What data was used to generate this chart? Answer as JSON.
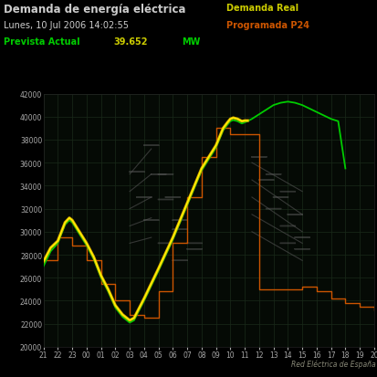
{
  "title": "Demanda de energía eléctrica",
  "subtitle": "Lunes, 10 Jul 2006 14:02:55",
  "label_prevista": "Prevista Actual",
  "label_value": "39.652",
  "label_mw": "MW",
  "label_demanda_real": "Demanda Real",
  "label_programada": "Programada P24",
  "watermark": "Red Eléctrica de España",
  "bg_color": "#000000",
  "grid_color": "#1e2a1e",
  "title_color": "#cccccc",
  "subtitle_color": "#cccccc",
  "prevista_color": "#00cc00",
  "value_color": "#cccc00",
  "mw_color": "#00cc00",
  "real_color": "#cccc00",
  "programada_color": "#cc5500",
  "ylim": [
    20000,
    42000
  ],
  "yticks": [
    20000,
    22000,
    24000,
    26000,
    28000,
    30000,
    32000,
    34000,
    36000,
    38000,
    40000,
    42000
  ],
  "hours": [
    "21",
    "22",
    "23",
    "00",
    "01",
    "02",
    "03",
    "04",
    "05",
    "06",
    "07",
    "08",
    "09",
    "10",
    "11",
    "12",
    "13",
    "14",
    "15",
    "16",
    "17",
    "18",
    "19",
    "20"
  ],
  "demanda_real_y": [
    27400,
    28600,
    29200,
    30800,
    31200,
    31000,
    30000,
    29000,
    27800,
    26200,
    25000,
    23600,
    22800,
    22500,
    22300,
    22500,
    24200,
    26800,
    29500,
    32500,
    35500,
    37500,
    39000,
    39500,
    39800,
    39900,
    39800,
    39600,
    39652,
    39652
  ],
  "demanda_real_t": [
    0,
    0.5,
    1,
    1.5,
    1.8,
    2,
    2.5,
    3,
    3.5,
    4,
    4.5,
    5,
    5.5,
    5.8,
    6,
    6.3,
    7,
    8,
    9,
    10,
    11,
    12,
    12.5,
    12.8,
    13,
    13.2,
    13.5,
    13.8,
    14,
    14.2
  ],
  "prevista_y": [
    27000,
    28300,
    29000,
    30600,
    31000,
    30800,
    29800,
    28800,
    27600,
    26000,
    24800,
    23400,
    22600,
    22300,
    22100,
    22300,
    24000,
    26600,
    29300,
    32300,
    35300,
    37300,
    38800,
    39300,
    39600,
    39700,
    39600,
    39400,
    39500,
    39600,
    39800,
    40200,
    40600,
    41000,
    41200,
    41300,
    41200,
    41000,
    40700,
    40400,
    40100,
    39800,
    39600,
    35500
  ],
  "prevista_t": [
    0,
    0.5,
    1,
    1.5,
    1.8,
    2,
    2.5,
    3,
    3.5,
    4,
    4.5,
    5,
    5.5,
    5.8,
    6,
    6.3,
    7,
    8,
    9,
    10,
    11,
    12,
    12.5,
    12.8,
    13,
    13.2,
    13.5,
    13.8,
    14,
    14.2,
    14.5,
    15,
    15.5,
    16,
    16.5,
    17,
    17.5,
    18,
    18.5,
    19,
    19.5,
    20,
    20.5,
    21
  ],
  "prog_t": [
    0,
    1,
    2,
    3,
    4,
    5,
    6,
    7,
    8,
    9,
    10,
    11,
    12,
    13,
    14,
    15,
    16,
    17,
    18,
    19,
    20,
    21,
    22,
    23
  ],
  "prog_y": [
    27500,
    29500,
    28800,
    27500,
    25500,
    24000,
    22800,
    22500,
    24800,
    29000,
    33000,
    36500,
    39000,
    38500,
    38500,
    25000,
    25000,
    25000,
    25200,
    24800,
    24200,
    23800,
    23500,
    23200
  ],
  "ree_circles": [
    [
      6.5,
      35200
    ],
    [
      7.5,
      37500
    ],
    [
      8.5,
      35000
    ],
    [
      7.0,
      33000
    ],
    [
      8.0,
      35000
    ],
    [
      9.0,
      33000
    ],
    [
      7.5,
      31000
    ],
    [
      8.5,
      32800
    ],
    [
      9.5,
      31000
    ],
    [
      8.5,
      29000
    ],
    [
      9.5,
      30200
    ],
    [
      10.5,
      29000
    ],
    [
      9.5,
      27500
    ],
    [
      10.5,
      28500
    ],
    [
      15.0,
      36500
    ],
    [
      16.0,
      35000
    ],
    [
      17.0,
      33500
    ],
    [
      15.5,
      34500
    ],
    [
      16.5,
      33000
    ],
    [
      17.5,
      31500
    ],
    [
      16.0,
      32000
    ],
    [
      17.0,
      30500
    ],
    [
      18.0,
      29500
    ],
    [
      17.0,
      29000
    ],
    [
      18.0,
      28500
    ]
  ],
  "ree_lines": [
    [
      [
        6.0,
        7.5
      ],
      [
        35000,
        37200
      ]
    ],
    [
      [
        6.0,
        7.5
      ],
      [
        33500,
        35000
      ]
    ],
    [
      [
        6.0,
        7.5
      ],
      [
        32000,
        33000
      ]
    ],
    [
      [
        6.0,
        7.5
      ],
      [
        30500,
        31200
      ]
    ],
    [
      [
        6.0,
        7.5
      ],
      [
        29000,
        29500
      ]
    ],
    [
      [
        14.5,
        18.0
      ],
      [
        36000,
        33500
      ]
    ],
    [
      [
        14.5,
        18.0
      ],
      [
        34500,
        31500
      ]
    ],
    [
      [
        14.5,
        18.0
      ],
      [
        33000,
        30000
      ]
    ],
    [
      [
        14.5,
        18.0
      ],
      [
        31500,
        29000
      ]
    ],
    [
      [
        14.5,
        18.0
      ],
      [
        30000,
        27500
      ]
    ]
  ]
}
